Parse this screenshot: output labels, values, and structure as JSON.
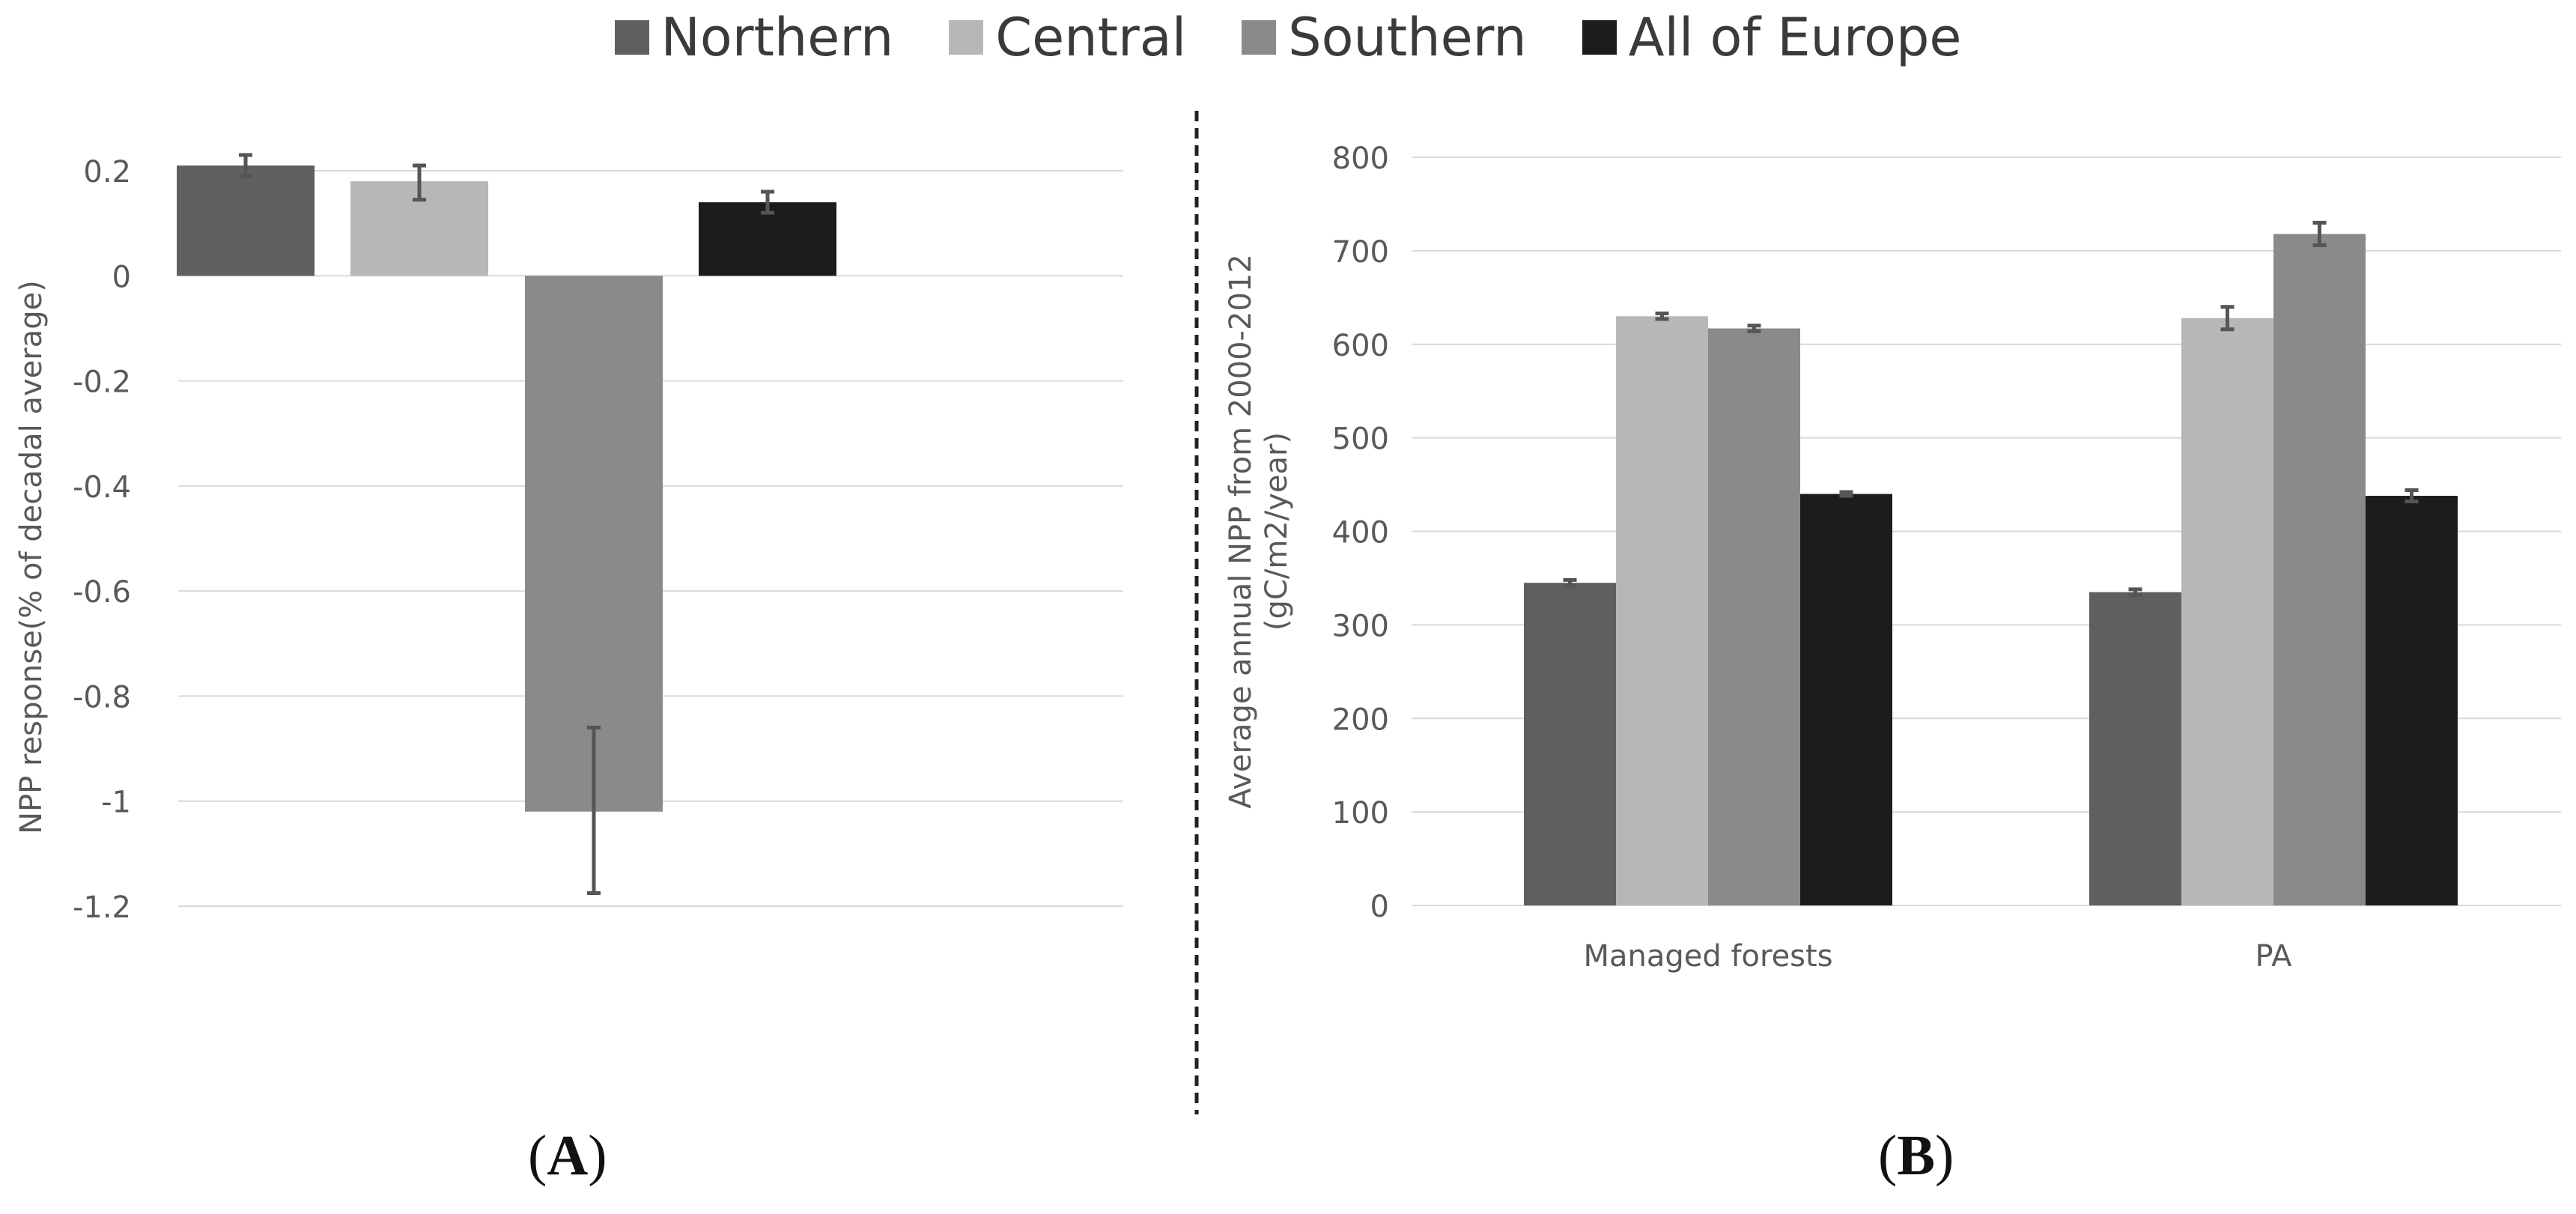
{
  "legend": {
    "items": [
      {
        "label": "Northern",
        "color": "#5f5f5f"
      },
      {
        "label": "Central",
        "color": "#b7b7b7"
      },
      {
        "label": "Southern",
        "color": "#8a8a8a"
      },
      {
        "label": "All of Europe",
        "color": "#1c1c1c"
      }
    ]
  },
  "panels": {
    "a": {
      "open": "(",
      "letter": "A",
      "close": ")"
    },
    "b": {
      "open": "(",
      "letter": "B",
      "close": ")"
    }
  },
  "chart_data": [
    {
      "type": "bar",
      "panel": "A",
      "ylabel": "NPP response(% of decadal average)",
      "ylim": [
        -1.2,
        0.2
      ],
      "yticks": [
        0.2,
        0,
        -0.2,
        -0.4,
        -0.6,
        -0.8,
        -1,
        -1.2
      ],
      "ytick_labels": [
        "0.2",
        "0",
        "-0.2",
        "-0.4",
        "-0.6",
        "-0.8",
        "-1",
        "-1.2"
      ],
      "grid": true,
      "series": [
        {
          "name": "Northern",
          "value": 0.21,
          "error_low": 0.19,
          "error_high": 0.23
        },
        {
          "name": "Central",
          "value": 0.18,
          "error_low": 0.145,
          "error_high": 0.21
        },
        {
          "name": "Southern",
          "value": -1.02,
          "error_low": -1.175,
          "error_high": -0.86
        },
        {
          "name": "All of Europe",
          "value": 0.14,
          "error_low": 0.12,
          "error_high": 0.16
        }
      ]
    },
    {
      "type": "bar",
      "panel": "B",
      "ylabel_lines": [
        "Average annual NPP from 2000-2012",
        "(gC/m2/year)"
      ],
      "ylim": [
        0,
        800
      ],
      "yticks": [
        0,
        100,
        200,
        300,
        400,
        500,
        600,
        700,
        800
      ],
      "ytick_labels": [
        "0",
        "100",
        "200",
        "300",
        "400",
        "500",
        "600",
        "700",
        "800"
      ],
      "grid": true,
      "categories": [
        "Managed forests",
        "PA"
      ],
      "series": [
        {
          "name": "Northern",
          "values": [
            345,
            335
          ],
          "errors": [
            3,
            3
          ]
        },
        {
          "name": "Central",
          "values": [
            630,
            628
          ],
          "errors": [
            3,
            12
          ]
        },
        {
          "name": "Southern",
          "values": [
            617,
            718
          ],
          "errors": [
            3,
            12
          ]
        },
        {
          "name": "All of Europe",
          "values": [
            440,
            438
          ],
          "errors": [
            2,
            6
          ]
        }
      ]
    }
  ]
}
